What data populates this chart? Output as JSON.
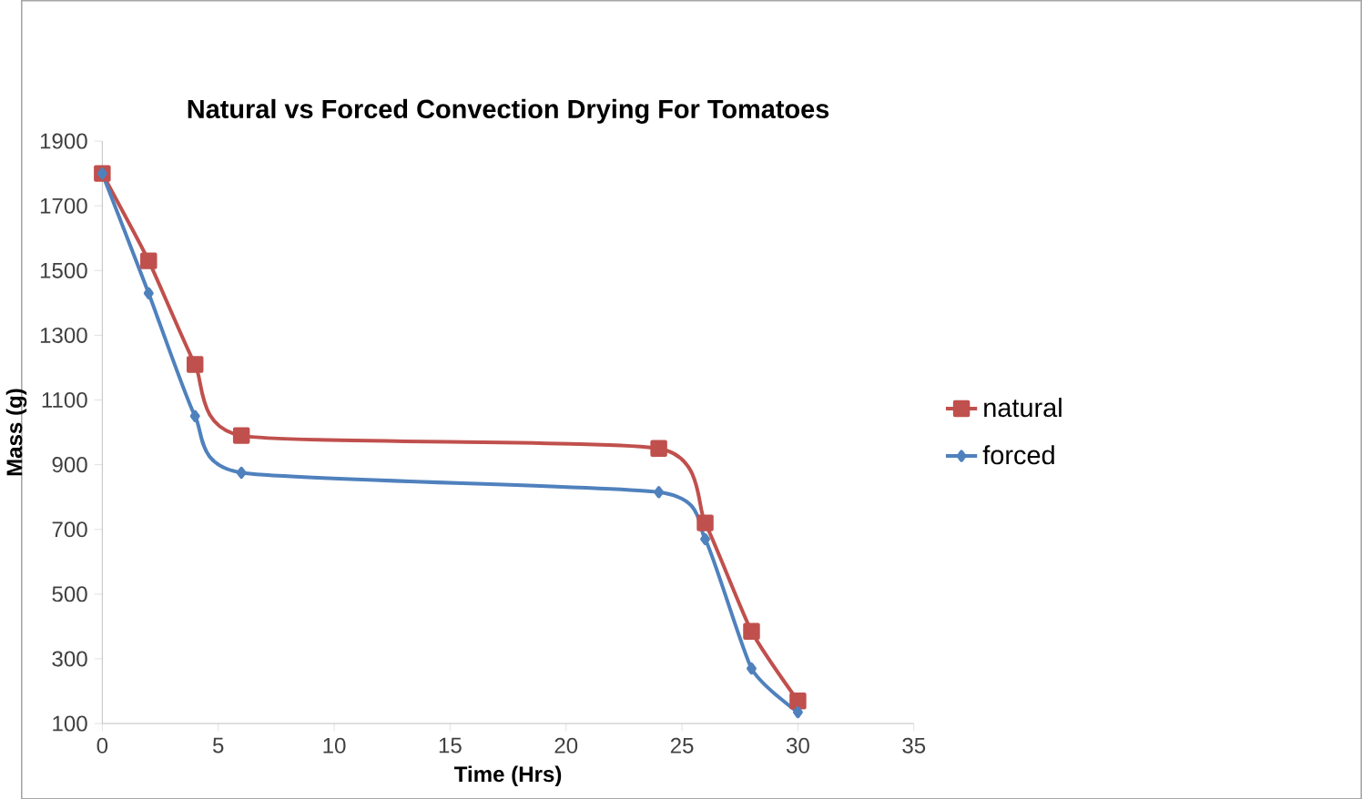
{
  "chart_data": {
    "type": "line",
    "title": "Natural vs Forced Convection Drying For Tomatoes",
    "xlabel": "Time (Hrs)",
    "ylabel": "Mass (g)",
    "xlim": [
      0,
      35
    ],
    "xticks": [
      0,
      5,
      10,
      15,
      20,
      25,
      30,
      35
    ],
    "ylim": [
      100,
      1900
    ],
    "yticks": [
      100,
      300,
      500,
      700,
      900,
      1100,
      1300,
      1500,
      1700,
      1900
    ],
    "grid": false,
    "legend": "right",
    "series": [
      {
        "name": "natural",
        "color": "#c0504d",
        "marker": "square",
        "x": [
          0,
          2,
          4,
          6,
          24,
          26,
          28,
          30
        ],
        "values": [
          1800,
          1530,
          1210,
          990,
          950,
          720,
          385,
          170
        ]
      },
      {
        "name": "forced",
        "color": "#4f81bd",
        "marker": "diamond",
        "x": [
          0,
          2,
          4,
          6,
          24,
          26,
          28,
          30
        ],
        "values": [
          1800,
          1430,
          1050,
          875,
          815,
          670,
          270,
          135
        ]
      }
    ]
  }
}
